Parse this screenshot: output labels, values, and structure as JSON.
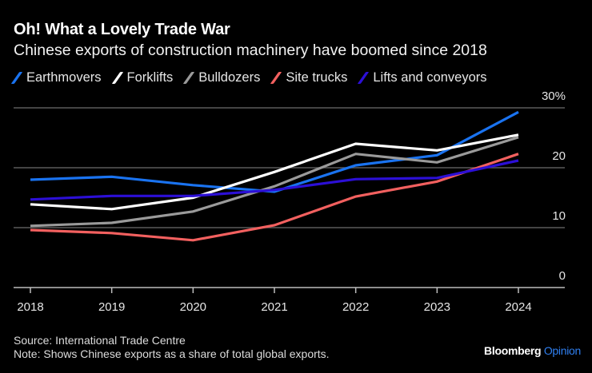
{
  "header": {
    "title": "Oh! What a Lovely Trade War",
    "subtitle": "Chinese exports of construction machinery have boomed since 2018"
  },
  "footer": {
    "source": "Source: International Trade Centre",
    "note": "Note: Shows Chinese exports as a share of total global exports.",
    "brand_main": "Bloomberg",
    "brand_accent": "Opinion",
    "brand_accent_color": "#2f7ff0"
  },
  "chart_data": {
    "type": "line",
    "title": "Oh! What a Lovely Trade War",
    "subtitle": "Chinese exports of construction machinery have boomed since 2018",
    "xlabel": "",
    "ylabel": "",
    "x": [
      "2018",
      "2019",
      "2020",
      "2021",
      "2022",
      "2023",
      "2024"
    ],
    "ylim": [
      0,
      30
    ],
    "yticks": [
      0,
      10,
      20,
      30
    ],
    "ytick_labels": [
      "0",
      "10",
      "20",
      "30%"
    ],
    "y_axis_side": "right",
    "grid": true,
    "legend_position": "top-left",
    "series": [
      {
        "name": "Earthmovers",
        "color": "#1a73f0",
        "values": [
          18.0,
          18.5,
          17.1,
          16.0,
          20.4,
          22.1,
          29.3
        ]
      },
      {
        "name": "Forklifts",
        "color": "#ffffff",
        "values": [
          13.9,
          13.1,
          15.0,
          19.3,
          24.0,
          22.9,
          25.5
        ]
      },
      {
        "name": "Bulldozers",
        "color": "#9a9a9a",
        "values": [
          10.3,
          10.8,
          12.7,
          16.9,
          22.3,
          20.9,
          25.1
        ]
      },
      {
        "name": "Site trucks",
        "color": "#f2605f",
        "values": [
          9.6,
          9.1,
          7.9,
          10.4,
          15.2,
          17.7,
          22.3
        ]
      },
      {
        "name": "Lifts and conveyors",
        "color": "#2c0fd6",
        "values": [
          14.7,
          15.3,
          15.3,
          16.3,
          18.1,
          18.3,
          21.2
        ]
      }
    ]
  }
}
